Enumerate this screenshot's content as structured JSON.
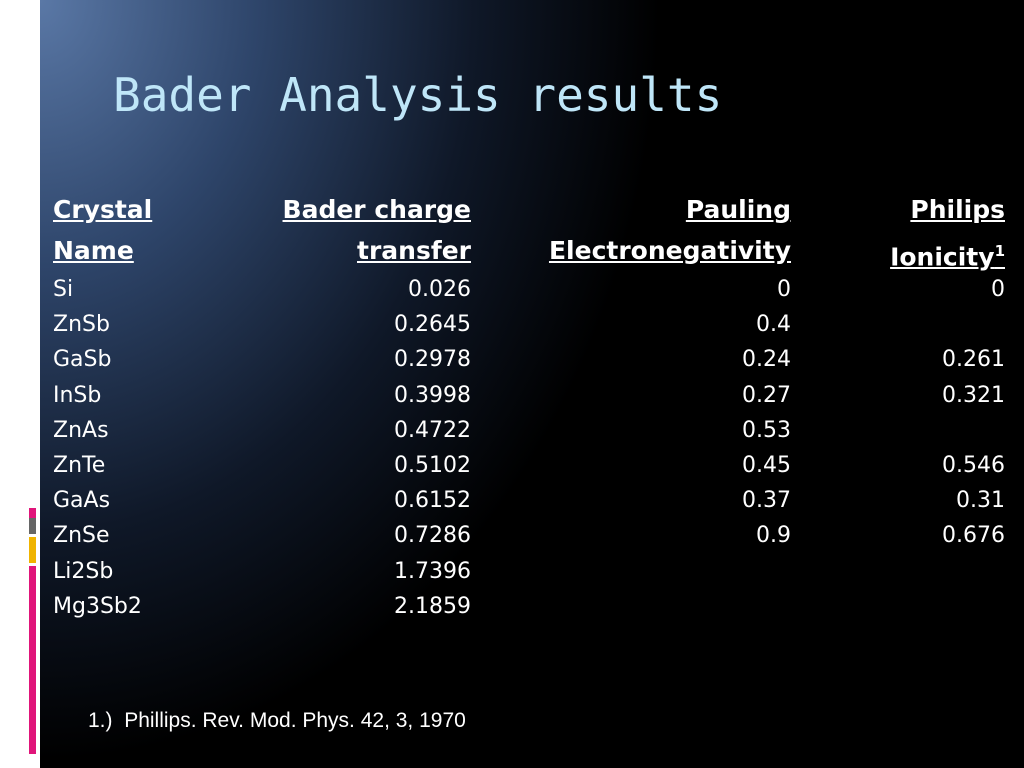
{
  "title": "Bader Analysis results",
  "table": {
    "headers": [
      {
        "lines": [
          "Crystal",
          "Name"
        ]
      },
      {
        "lines": [
          "Bader charge",
          "transfer"
        ]
      },
      {
        "lines": [
          "Pauling",
          "Electronegativity"
        ]
      },
      {
        "lines": [
          "Philips",
          "Ionicity"
        ],
        "note_ref": "1"
      }
    ],
    "rows": [
      [
        "Si",
        "0.026",
        "0",
        "0"
      ],
      [
        "ZnSb",
        "0.2645",
        "0.4",
        null
      ],
      [
        "GaSb",
        "0.2978",
        "0.24",
        "0.261"
      ],
      [
        "InSb",
        "0.3998",
        "0.27",
        "0.321"
      ],
      [
        "ZnAs",
        "0.4722",
        "0.53",
        null
      ],
      [
        "ZnTe",
        "0.5102",
        "0.45",
        "0.546"
      ],
      [
        "GaAs",
        "0.6152",
        "0.37",
        "0.31"
      ],
      [
        "ZnSe",
        "0.7286",
        "0.9",
        "0.676"
      ],
      [
        "Li2Sb",
        "1.7396",
        null,
        null
      ],
      [
        "Mg3Sb2",
        "2.1859",
        null,
        null
      ]
    ]
  },
  "footnote": {
    "marker": "1.)",
    "text": "Phillips. Rev. Mod. Phys. 42, 3, 1970"
  }
}
